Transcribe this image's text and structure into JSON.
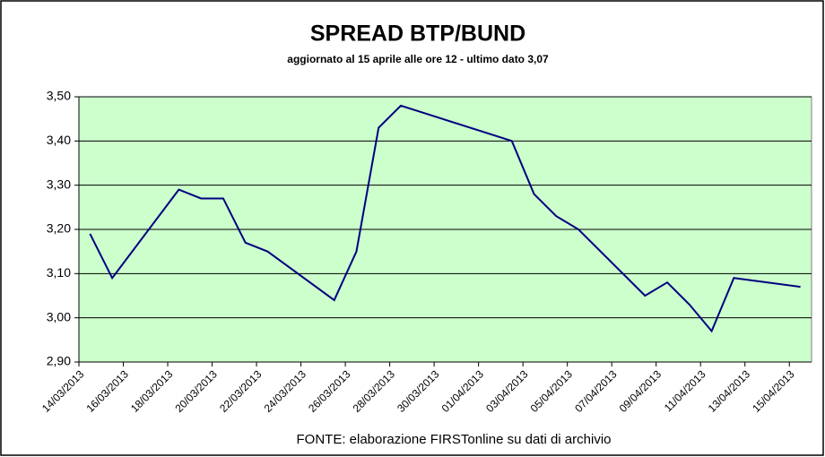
{
  "chart_data": {
    "type": "line",
    "title": "SPREAD  BTP/BUND",
    "subtitle": "aggiornato al 15 aprile alle ore 12 - ultimo dato 3,07",
    "source": "FONTE: elaborazione FIRSTonline su dati di archivio",
    "x": [
      "14/03/2013",
      "15/03/2013",
      "18/03/2013",
      "19/03/2013",
      "20/03/2013",
      "21/03/2013",
      "22/03/2013",
      "25/03/2013",
      "26/03/2013",
      "27/03/2013",
      "28/03/2013",
      "02/04/2013",
      "03/04/2013",
      "04/04/2013",
      "05/04/2013",
      "08/04/2013",
      "09/04/2013",
      "10/04/2013",
      "11/04/2013",
      "12/04/2013",
      "15/04/2013"
    ],
    "series": [
      {
        "color": "#000080",
        "values": [
          3.19,
          3.09,
          3.29,
          3.27,
          3.27,
          3.17,
          3.15,
          3.04,
          3.15,
          3.43,
          3.48,
          3.4,
          3.28,
          3.23,
          3.2,
          3.05,
          3.08,
          3.03,
          2.97,
          3.09,
          3.07
        ]
      }
    ],
    "xlim": [
      "14/03/2013",
      "16/04/2013"
    ],
    "xticks": [
      "14/03/2013",
      "16/03/2013",
      "18/03/2013",
      "20/03/2013",
      "22/03/2013",
      "24/03/2013",
      "26/03/2013",
      "28/03/2013",
      "30/03/2013",
      "01/04/2013",
      "03/04/2013",
      "05/04/2013",
      "07/04/2013",
      "09/04/2013",
      "11/04/2013",
      "13/04/2013",
      "15/04/2013"
    ],
    "ylim": [
      2.9,
      3.5
    ],
    "yticks": [
      {
        "value": 2.9,
        "label": "2,90"
      },
      {
        "value": 3.0,
        "label": "3,00"
      },
      {
        "value": 3.1,
        "label": "3,10"
      },
      {
        "value": 3.2,
        "label": "3,20"
      },
      {
        "value": 3.3,
        "label": "3,30"
      },
      {
        "value": 3.4,
        "label": "3,40"
      },
      {
        "value": 3.5,
        "label": "3,50"
      }
    ],
    "grid": true,
    "plot_background": "#ccffcc"
  }
}
